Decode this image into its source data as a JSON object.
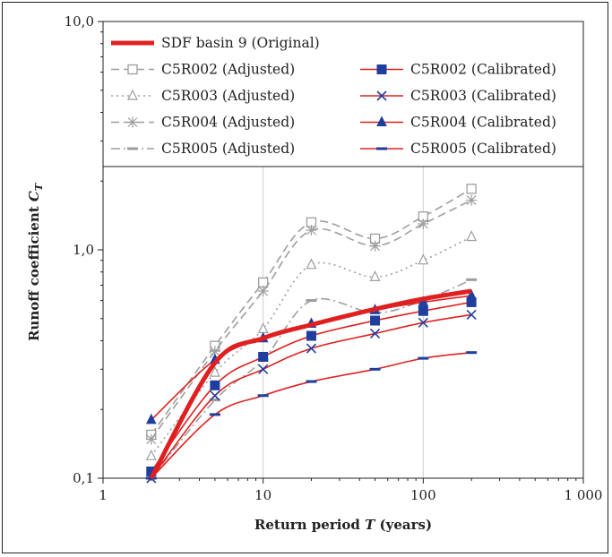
{
  "chart_data": {
    "type": "line",
    "x_scale": "log",
    "y_scale": "log",
    "xlim": [
      1,
      1000
    ],
    "ylim": [
      0.1,
      10
    ],
    "x_ticks": [
      {
        "value": 1,
        "label": "1"
      },
      {
        "value": 10,
        "label": "10"
      },
      {
        "value": 100,
        "label": "100"
      },
      {
        "value": 1000,
        "label": "1 000"
      }
    ],
    "y_ticks": [
      {
        "value": 0.1,
        "label": "0,1"
      },
      {
        "value": 1,
        "label": "1,0"
      },
      {
        "value": 10,
        "label": "10,0"
      }
    ],
    "xlabel": "Return period T (years)",
    "ylabel": "Runoff coefficient C_T",
    "xlabel_parts": {
      "pre": "Return period ",
      "var": "T",
      "post": " (years)"
    },
    "ylabel_parts": {
      "pre": "Runoff coefficient ",
      "var": "C",
      "sub": "T"
    },
    "grid": "vertical major lines",
    "legend_placement": "top",
    "series": [
      {
        "name": "SDF basin 9 (Original)",
        "color": "#e02020",
        "style": "thick-solid",
        "marker": "none",
        "x": [
          2,
          5,
          10,
          20,
          50,
          100,
          200
        ],
        "y": [
          0.1,
          0.32,
          0.41,
          0.47,
          0.55,
          0.61,
          0.66
        ]
      },
      {
        "name": "C5R002 (Adjusted)",
        "color": "#9e9e9e",
        "style": "dash",
        "marker": "open-square",
        "x": [
          2,
          5,
          10,
          20,
          50,
          100,
          200
        ],
        "y": [
          0.155,
          0.38,
          0.72,
          1.32,
          1.12,
          1.4,
          1.85
        ]
      },
      {
        "name": "C5R003 (Adjusted)",
        "color": "#9e9e9e",
        "style": "dot",
        "marker": "open-triangle",
        "x": [
          2,
          5,
          10,
          20,
          50,
          100,
          200
        ],
        "y": [
          0.125,
          0.29,
          0.45,
          0.86,
          0.76,
          0.9,
          1.14
        ]
      },
      {
        "name": "C5R004 (Adjusted)",
        "color": "#9e9e9e",
        "style": "dash",
        "marker": "star",
        "x": [
          2,
          5,
          10,
          20,
          50,
          100,
          200
        ],
        "y": [
          0.148,
          0.36,
          0.66,
          1.22,
          1.04,
          1.3,
          1.65
        ]
      },
      {
        "name": "C5R005 (Adjusted)",
        "color": "#9e9e9e",
        "style": "dashdot",
        "marker": "dash",
        "x": [
          2,
          5,
          10,
          20,
          50,
          100,
          200
        ],
        "y": [
          0.1,
          0.22,
          0.33,
          0.6,
          0.53,
          0.6,
          0.74
        ]
      },
      {
        "name": "C5R002 (Calibrated)",
        "color": "#e02020",
        "style": "solid",
        "marker": "filled-square",
        "marker_color": "#1f3f9f",
        "x": [
          2,
          5,
          10,
          20,
          50,
          100,
          200
        ],
        "y": [
          0.107,
          0.255,
          0.34,
          0.42,
          0.49,
          0.54,
          0.59
        ]
      },
      {
        "name": "C5R003 (Calibrated)",
        "color": "#e02020",
        "style": "solid",
        "marker": "x",
        "marker_color": "#1f3f9f",
        "x": [
          2,
          5,
          10,
          20,
          50,
          100,
          200
        ],
        "y": [
          0.1,
          0.23,
          0.3,
          0.37,
          0.43,
          0.48,
          0.52
        ]
      },
      {
        "name": "C5R004 (Calibrated)",
        "color": "#e02020",
        "style": "solid",
        "marker": "filled-triangle",
        "marker_color": "#1f3f9f",
        "x": [
          2,
          5,
          10,
          20,
          50,
          100,
          200
        ],
        "y": [
          0.18,
          0.33,
          0.41,
          0.475,
          0.545,
          0.59,
          0.63
        ]
      },
      {
        "name": "C5R005 (Calibrated)",
        "color": "#e02020",
        "style": "solid",
        "marker": "dash",
        "marker_color": "#1f3f9f",
        "x": [
          2,
          5,
          10,
          20,
          50,
          100,
          200
        ],
        "y": [
          0.1,
          0.19,
          0.23,
          0.265,
          0.3,
          0.335,
          0.355
        ]
      }
    ]
  }
}
